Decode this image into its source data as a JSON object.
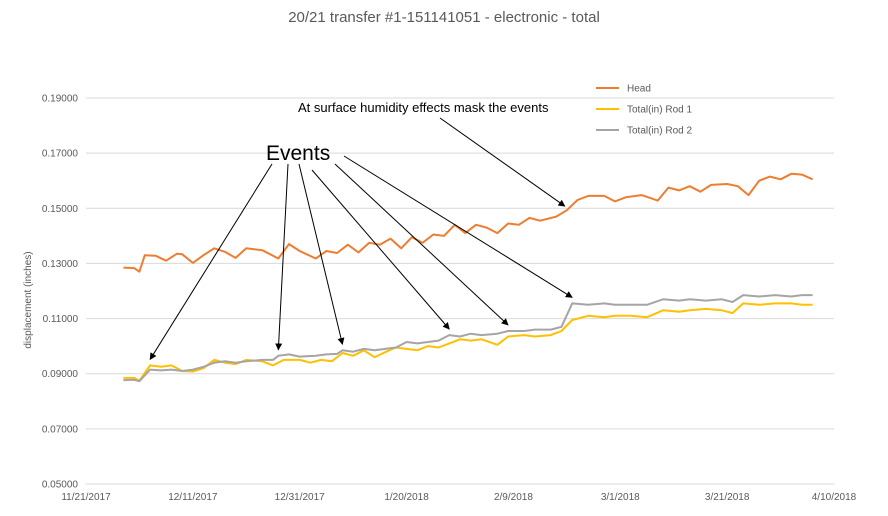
{
  "chart_data": {
    "type": "line",
    "title": "20/21 transfer #1-151141051 - electronic - total",
    "ylabel": "displacement (inches)",
    "xlabel": "",
    "ylim": [
      0.05,
      0.2
    ],
    "xlim": [
      "2017-11-21",
      "2018-04-10"
    ],
    "x_ticks": [
      "11/21/2017",
      "12/11/2017",
      "12/31/2017",
      "1/20/2018",
      "2/9/2018",
      "3/1/2018",
      "3/21/2018",
      "4/10/2018"
    ],
    "y_ticks": [
      "0.19000",
      "0.17000",
      "0.15000",
      "0.13000",
      "0.11000",
      "0.09000",
      "0.07000",
      "0.05000"
    ],
    "grid": "horizontal",
    "legend_position": "top-right",
    "series": [
      {
        "name": "Head",
        "color": "#ED7D31",
        "points": [
          [
            "2017-11-28",
            0.1285
          ],
          [
            "2017-11-30",
            0.1283
          ],
          [
            "2017-12-01",
            0.127
          ],
          [
            "2017-12-02",
            0.133
          ],
          [
            "2017-12-04",
            0.1328
          ],
          [
            "2017-12-06",
            0.131
          ],
          [
            "2017-12-08",
            0.1335
          ],
          [
            "2017-12-09",
            0.1333
          ],
          [
            "2017-12-11",
            0.1302
          ],
          [
            "2017-12-13",
            0.133
          ],
          [
            "2017-12-15",
            0.1355
          ],
          [
            "2017-12-17",
            0.1342
          ],
          [
            "2017-12-19",
            0.132
          ],
          [
            "2017-12-21",
            0.1355
          ],
          [
            "2017-12-24",
            0.1348
          ],
          [
            "2017-12-27",
            0.1318
          ],
          [
            "2017-12-29",
            0.137
          ],
          [
            "2017-12-31",
            0.1345
          ],
          [
            "2018-01-03",
            0.1318
          ],
          [
            "2018-01-05",
            0.1345
          ],
          [
            "2018-01-07",
            0.1338
          ],
          [
            "2018-01-09",
            0.1368
          ],
          [
            "2018-01-11",
            0.134
          ],
          [
            "2018-01-13",
            0.1375
          ],
          [
            "2018-01-15",
            0.1368
          ],
          [
            "2018-01-17",
            0.139
          ],
          [
            "2018-01-19",
            0.1355
          ],
          [
            "2018-01-21",
            0.1395
          ],
          [
            "2018-01-23",
            0.1375
          ],
          [
            "2018-01-25",
            0.1405
          ],
          [
            "2018-01-27",
            0.14
          ],
          [
            "2018-01-29",
            0.144
          ],
          [
            "2018-01-31",
            0.141
          ],
          [
            "2018-02-02",
            0.144
          ],
          [
            "2018-02-04",
            0.143
          ],
          [
            "2018-02-06",
            0.141
          ],
          [
            "2018-02-08",
            0.1445
          ],
          [
            "2018-02-10",
            0.144
          ],
          [
            "2018-02-12",
            0.1465
          ],
          [
            "2018-02-14",
            0.1455
          ],
          [
            "2018-02-17",
            0.147
          ],
          [
            "2018-02-19",
            0.1493
          ],
          [
            "2018-02-21",
            0.153
          ],
          [
            "2018-02-23",
            0.1545
          ],
          [
            "2018-02-26",
            0.1545
          ],
          [
            "2018-02-28",
            0.1525
          ],
          [
            "2018-03-02",
            0.154
          ],
          [
            "2018-03-05",
            0.1548
          ],
          [
            "2018-03-08",
            0.1528
          ],
          [
            "2018-03-10",
            0.1575
          ],
          [
            "2018-03-12",
            0.1565
          ],
          [
            "2018-03-14",
            0.158
          ],
          [
            "2018-03-16",
            0.156
          ],
          [
            "2018-03-18",
            0.1585
          ],
          [
            "2018-03-21",
            0.1588
          ],
          [
            "2018-03-23",
            0.158
          ],
          [
            "2018-03-25",
            0.1548
          ],
          [
            "2018-03-27",
            0.16
          ],
          [
            "2018-03-29",
            0.1615
          ],
          [
            "2018-03-31",
            0.1605
          ],
          [
            "2018-04-02",
            0.1625
          ],
          [
            "2018-04-04",
            0.1622
          ],
          [
            "2018-04-06",
            0.1605
          ]
        ]
      },
      {
        "name": "Total(in) Rod 1",
        "color": "#FFC000",
        "points": [
          [
            "2017-11-28",
            0.0885
          ],
          [
            "2017-11-30",
            0.0885
          ],
          [
            "2017-12-01",
            0.0875
          ],
          [
            "2017-12-03",
            0.093
          ],
          [
            "2017-12-05",
            0.0925
          ],
          [
            "2017-12-07",
            0.093
          ],
          [
            "2017-12-09",
            0.091
          ],
          [
            "2017-12-11",
            0.0908
          ],
          [
            "2017-12-13",
            0.092
          ],
          [
            "2017-12-15",
            0.095
          ],
          [
            "2017-12-17",
            0.094
          ],
          [
            "2017-12-19",
            0.0935
          ],
          [
            "2017-12-21",
            0.095
          ],
          [
            "2017-12-24",
            0.0945
          ],
          [
            "2017-12-26",
            0.093
          ],
          [
            "2017-12-28",
            0.095
          ],
          [
            "2017-12-31",
            0.095
          ],
          [
            "2018-01-02",
            0.094
          ],
          [
            "2018-01-04",
            0.095
          ],
          [
            "2018-01-06",
            0.0945
          ],
          [
            "2018-01-08",
            0.0975
          ],
          [
            "2018-01-10",
            0.0965
          ],
          [
            "2018-01-12",
            0.0985
          ],
          [
            "2018-01-14",
            0.096
          ],
          [
            "2018-01-16",
            0.0978
          ],
          [
            "2018-01-18",
            0.0995
          ],
          [
            "2018-01-20",
            0.099
          ],
          [
            "2018-01-22",
            0.0985
          ],
          [
            "2018-01-24",
            0.1
          ],
          [
            "2018-01-26",
            0.0995
          ],
          [
            "2018-01-28",
            0.101
          ],
          [
            "2018-01-30",
            0.1025
          ],
          [
            "2018-02-01",
            0.102
          ],
          [
            "2018-02-03",
            0.1025
          ],
          [
            "2018-02-06",
            0.1005
          ],
          [
            "2018-02-08",
            0.1035
          ],
          [
            "2018-02-11",
            0.104
          ],
          [
            "2018-02-13",
            0.1035
          ],
          [
            "2018-02-16",
            0.104
          ],
          [
            "2018-02-18",
            0.1055
          ],
          [
            "2018-02-20",
            0.1095
          ],
          [
            "2018-02-23",
            0.111
          ],
          [
            "2018-02-26",
            0.1105
          ],
          [
            "2018-02-28",
            0.111
          ],
          [
            "2018-03-03",
            0.111
          ],
          [
            "2018-03-06",
            0.1105
          ],
          [
            "2018-03-09",
            0.113
          ],
          [
            "2018-03-12",
            0.1125
          ],
          [
            "2018-03-14",
            0.113
          ],
          [
            "2018-03-17",
            0.1135
          ],
          [
            "2018-03-20",
            0.113
          ],
          [
            "2018-03-22",
            0.112
          ],
          [
            "2018-03-24",
            0.1155
          ],
          [
            "2018-03-27",
            0.115
          ],
          [
            "2018-03-30",
            0.1155
          ],
          [
            "2018-04-02",
            0.1155
          ],
          [
            "2018-04-04",
            0.115
          ],
          [
            "2018-04-06",
            0.115
          ]
        ]
      },
      {
        "name": "Total(in) Rod 2",
        "color": "#A5A5A5",
        "points": [
          [
            "2017-11-28",
            0.0877
          ],
          [
            "2017-11-30",
            0.0878
          ],
          [
            "2017-12-01",
            0.0873
          ],
          [
            "2017-12-03",
            0.0915
          ],
          [
            "2017-12-05",
            0.0912
          ],
          [
            "2017-12-07",
            0.0915
          ],
          [
            "2017-12-09",
            0.091
          ],
          [
            "2017-12-11",
            0.0915
          ],
          [
            "2017-12-13",
            0.0925
          ],
          [
            "2017-12-15",
            0.094
          ],
          [
            "2017-12-17",
            0.0945
          ],
          [
            "2017-12-19",
            0.094
          ],
          [
            "2017-12-21",
            0.0945
          ],
          [
            "2017-12-24",
            0.095
          ],
          [
            "2017-12-26",
            0.095
          ],
          [
            "2017-12-27",
            0.0965
          ],
          [
            "2017-12-29",
            0.097
          ],
          [
            "2017-12-31",
            0.0962
          ],
          [
            "2018-01-03",
            0.0965
          ],
          [
            "2018-01-05",
            0.097
          ],
          [
            "2018-01-07",
            0.0972
          ],
          [
            "2018-01-08",
            0.0985
          ],
          [
            "2018-01-10",
            0.098
          ],
          [
            "2018-01-12",
            0.099
          ],
          [
            "2018-01-14",
            0.0985
          ],
          [
            "2018-01-16",
            0.099
          ],
          [
            "2018-01-18",
            0.0995
          ],
          [
            "2018-01-20",
            0.1015
          ],
          [
            "2018-01-22",
            0.101
          ],
          [
            "2018-01-24",
            0.1015
          ],
          [
            "2018-01-26",
            0.102
          ],
          [
            "2018-01-28",
            0.104
          ],
          [
            "2018-01-30",
            0.1035
          ],
          [
            "2018-02-01",
            0.1045
          ],
          [
            "2018-02-03",
            0.104
          ],
          [
            "2018-02-06",
            0.1045
          ],
          [
            "2018-02-08",
            0.1055
          ],
          [
            "2018-02-11",
            0.1055
          ],
          [
            "2018-02-13",
            0.106
          ],
          [
            "2018-02-16",
            0.106
          ],
          [
            "2018-02-18",
            0.107
          ],
          [
            "2018-02-20",
            0.1155
          ],
          [
            "2018-02-23",
            0.115
          ],
          [
            "2018-02-26",
            0.1155
          ],
          [
            "2018-02-28",
            0.115
          ],
          [
            "2018-03-03",
            0.115
          ],
          [
            "2018-03-06",
            0.115
          ],
          [
            "2018-03-09",
            0.117
          ],
          [
            "2018-03-12",
            0.1165
          ],
          [
            "2018-03-14",
            0.117
          ],
          [
            "2018-03-17",
            0.1165
          ],
          [
            "2018-03-20",
            0.117
          ],
          [
            "2018-03-22",
            0.116
          ],
          [
            "2018-03-24",
            0.1185
          ],
          [
            "2018-03-27",
            0.118
          ],
          [
            "2018-03-30",
            0.1185
          ],
          [
            "2018-04-02",
            0.118
          ],
          [
            "2018-04-04",
            0.1185
          ],
          [
            "2018-04-06",
            0.1185
          ]
        ]
      }
    ],
    "annotations": [
      {
        "text": "At surface humidity effects mask the events",
        "targets": [
          [
            "2018-02-19",
            0.1493
          ]
        ]
      },
      {
        "text": "Events",
        "targets": [
          [
            "2017-12-03",
            0.093
          ],
          [
            "2017-12-27",
            0.0965
          ],
          [
            "2018-01-08",
            0.0985
          ],
          [
            "2018-01-28",
            0.104
          ],
          [
            "2018-02-08",
            0.1055
          ],
          [
            "2018-02-20",
            0.1155
          ]
        ]
      }
    ]
  }
}
